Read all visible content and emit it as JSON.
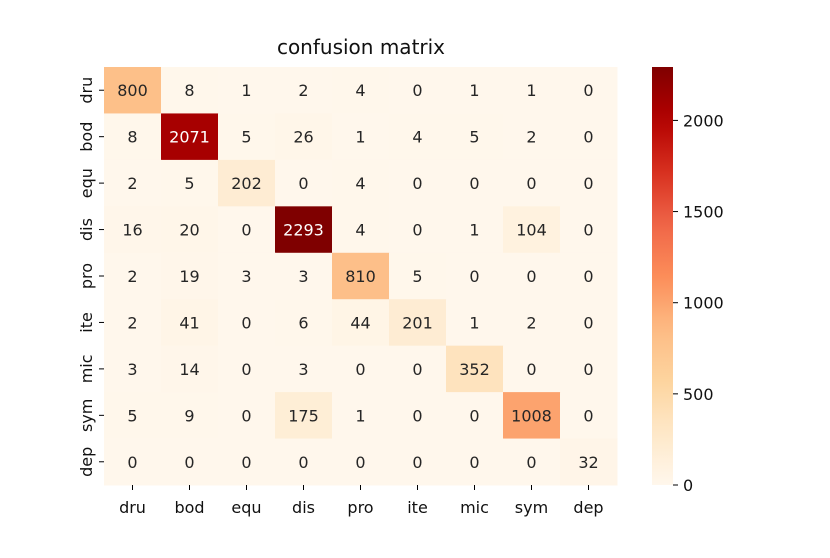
{
  "chart_data": {
    "type": "heatmap",
    "title": "confusion matrix",
    "xlabel": "",
    "ylabel": "",
    "row_labels": [
      "dru",
      "bod",
      "equ",
      "dis",
      "pro",
      "ite",
      "mic",
      "sym",
      "dep"
    ],
    "col_labels": [
      "dru",
      "bod",
      "equ",
      "dis",
      "pro",
      "ite",
      "mic",
      "sym",
      "dep"
    ],
    "matrix": [
      [
        800,
        8,
        1,
        2,
        4,
        0,
        1,
        1,
        0
      ],
      [
        8,
        2071,
        5,
        26,
        1,
        4,
        5,
        2,
        0
      ],
      [
        2,
        5,
        202,
        0,
        4,
        0,
        0,
        0,
        0
      ],
      [
        16,
        20,
        0,
        2293,
        4,
        0,
        1,
        104,
        0
      ],
      [
        2,
        19,
        3,
        3,
        810,
        5,
        0,
        0,
        0
      ],
      [
        2,
        41,
        0,
        6,
        44,
        201,
        1,
        2,
        0
      ],
      [
        3,
        14,
        0,
        3,
        0,
        0,
        352,
        0,
        0
      ],
      [
        5,
        9,
        0,
        175,
        1,
        0,
        0,
        1008,
        0
      ],
      [
        0,
        0,
        0,
        0,
        0,
        0,
        0,
        0,
        32
      ]
    ],
    "colormap": "OrRd",
    "colorbar": {
      "range": [
        0,
        2293
      ],
      "ticks": [
        0,
        500,
        1000,
        1500,
        2000
      ]
    }
  }
}
